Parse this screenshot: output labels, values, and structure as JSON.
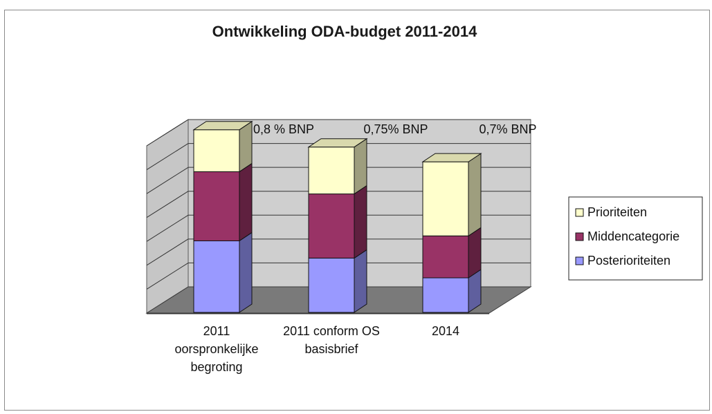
{
  "chart_data": {
    "type": "bar",
    "stacked": true,
    "three_d": true,
    "title": "Ontwikkeling ODA-budget 2011-2014",
    "categories": [
      [
        "2011",
        "oorspronkelijke",
        "begroting"
      ],
      [
        "2011 conform OS",
        "basisbrief"
      ],
      [
        "2014"
      ]
    ],
    "series": [
      {
        "name": "Posterioriteiten",
        "values": [
          29,
          22,
          14
        ],
        "color": "#9999ff"
      },
      {
        "name": "Middencategorie",
        "values": [
          28,
          26,
          17
        ],
        "color": "#993366"
      },
      {
        "name": "Prioriteiten",
        "values": [
          17,
          19,
          30
        ],
        "color": "#ffffcc"
      }
    ],
    "annotations": [
      "0,8 % BNP",
      "0,75% BNP",
      "0,7% BNP"
    ],
    "ylim": [
      0,
      84
    ],
    "y_gridlines": 7,
    "grid": true,
    "legend": {
      "position": "right",
      "order": [
        "Prioriteiten",
        "Middencategorie",
        "Posterioriteiten"
      ]
    }
  }
}
